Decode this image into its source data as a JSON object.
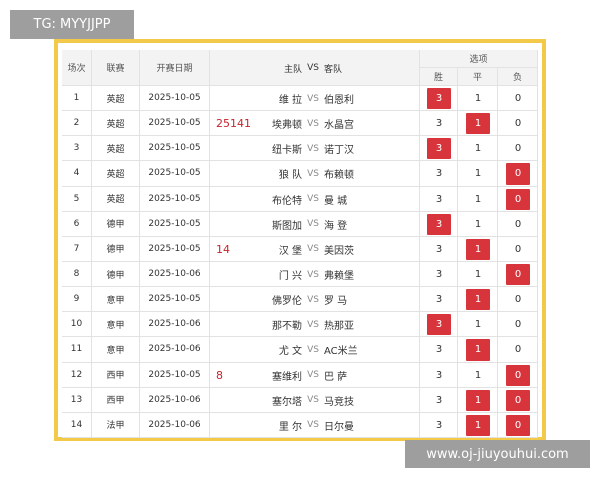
{
  "watermark_top": "TG: MYYJJPP",
  "watermark_bottom": "www.oj-jiuyouhui.com",
  "header": {
    "no": "场次",
    "league": "联赛",
    "date": "开赛日期",
    "home": "主队",
    "vs": "VS",
    "away": "客队",
    "options": "选项",
    "win": "胜",
    "draw": "平",
    "lose": "负"
  },
  "annotations": [
    {
      "text": "25141",
      "row": 1
    },
    {
      "text": "14",
      "row": 6
    },
    {
      "text": "8",
      "row": 11
    }
  ],
  "rows": [
    {
      "no": 1,
      "league": "英超",
      "date": "2025-10-05",
      "home": "维 拉",
      "vs": "VS",
      "away": "伯恩利",
      "odds": [
        3,
        1,
        0
      ],
      "selected": [
        true,
        false,
        false
      ]
    },
    {
      "no": 2,
      "league": "英超",
      "date": "2025-10-05",
      "home": "埃弗顿",
      "vs": "VS",
      "away": "水晶宫",
      "odds": [
        3,
        1,
        0
      ],
      "selected": [
        false,
        true,
        false
      ]
    },
    {
      "no": 3,
      "league": "英超",
      "date": "2025-10-05",
      "home": "纽卡斯",
      "vs": "VS",
      "away": "诺丁汉",
      "odds": [
        3,
        1,
        0
      ],
      "selected": [
        true,
        false,
        false
      ]
    },
    {
      "no": 4,
      "league": "英超",
      "date": "2025-10-05",
      "home": "狼 队",
      "vs": "VS",
      "away": "布赖顿",
      "odds": [
        3,
        1,
        0
      ],
      "selected": [
        false,
        false,
        true
      ]
    },
    {
      "no": 5,
      "league": "英超",
      "date": "2025-10-05",
      "home": "布伦特",
      "vs": "VS",
      "away": "曼 城",
      "odds": [
        3,
        1,
        0
      ],
      "selected": [
        false,
        false,
        true
      ]
    },
    {
      "no": 6,
      "league": "德甲",
      "date": "2025-10-05",
      "home": "斯图加",
      "vs": "VS",
      "away": "海 登",
      "odds": [
        3,
        1,
        0
      ],
      "selected": [
        true,
        false,
        false
      ]
    },
    {
      "no": 7,
      "league": "德甲",
      "date": "2025-10-05",
      "home": "汉 堡",
      "vs": "VS",
      "away": "美因茨",
      "odds": [
        3,
        1,
        0
      ],
      "selected": [
        false,
        true,
        false
      ]
    },
    {
      "no": 8,
      "league": "德甲",
      "date": "2025-10-06",
      "home": "门 兴",
      "vs": "VS",
      "away": "弗赖堡",
      "odds": [
        3,
        1,
        0
      ],
      "selected": [
        false,
        false,
        true
      ]
    },
    {
      "no": 9,
      "league": "意甲",
      "date": "2025-10-05",
      "home": "佛罗伦",
      "vs": "VS",
      "away": "罗 马",
      "odds": [
        3,
        1,
        0
      ],
      "selected": [
        false,
        true,
        false
      ]
    },
    {
      "no": 10,
      "league": "意甲",
      "date": "2025-10-06",
      "home": "那不勒",
      "vs": "VS",
      "away": "热那亚",
      "odds": [
        3,
        1,
        0
      ],
      "selected": [
        true,
        false,
        false
      ]
    },
    {
      "no": 11,
      "league": "意甲",
      "date": "2025-10-06",
      "home": "尤 文",
      "vs": "VS",
      "away": "AC米兰",
      "odds": [
        3,
        1,
        0
      ],
      "selected": [
        false,
        true,
        false
      ]
    },
    {
      "no": 12,
      "league": "西甲",
      "date": "2025-10-05",
      "home": "塞维利",
      "vs": "VS",
      "away": "巴 萨",
      "odds": [
        3,
        1,
        0
      ],
      "selected": [
        false,
        false,
        true
      ]
    },
    {
      "no": 13,
      "league": "西甲",
      "date": "2025-10-06",
      "home": "塞尔塔",
      "vs": "VS",
      "away": "马竞技",
      "odds": [
        3,
        1,
        0
      ],
      "selected": [
        false,
        true,
        true
      ]
    },
    {
      "no": 14,
      "league": "法甲",
      "date": "2025-10-06",
      "home": "里 尔",
      "vs": "VS",
      "away": "日尔曼",
      "odds": [
        3,
        1,
        0
      ],
      "selected": [
        false,
        true,
        true
      ]
    }
  ]
}
